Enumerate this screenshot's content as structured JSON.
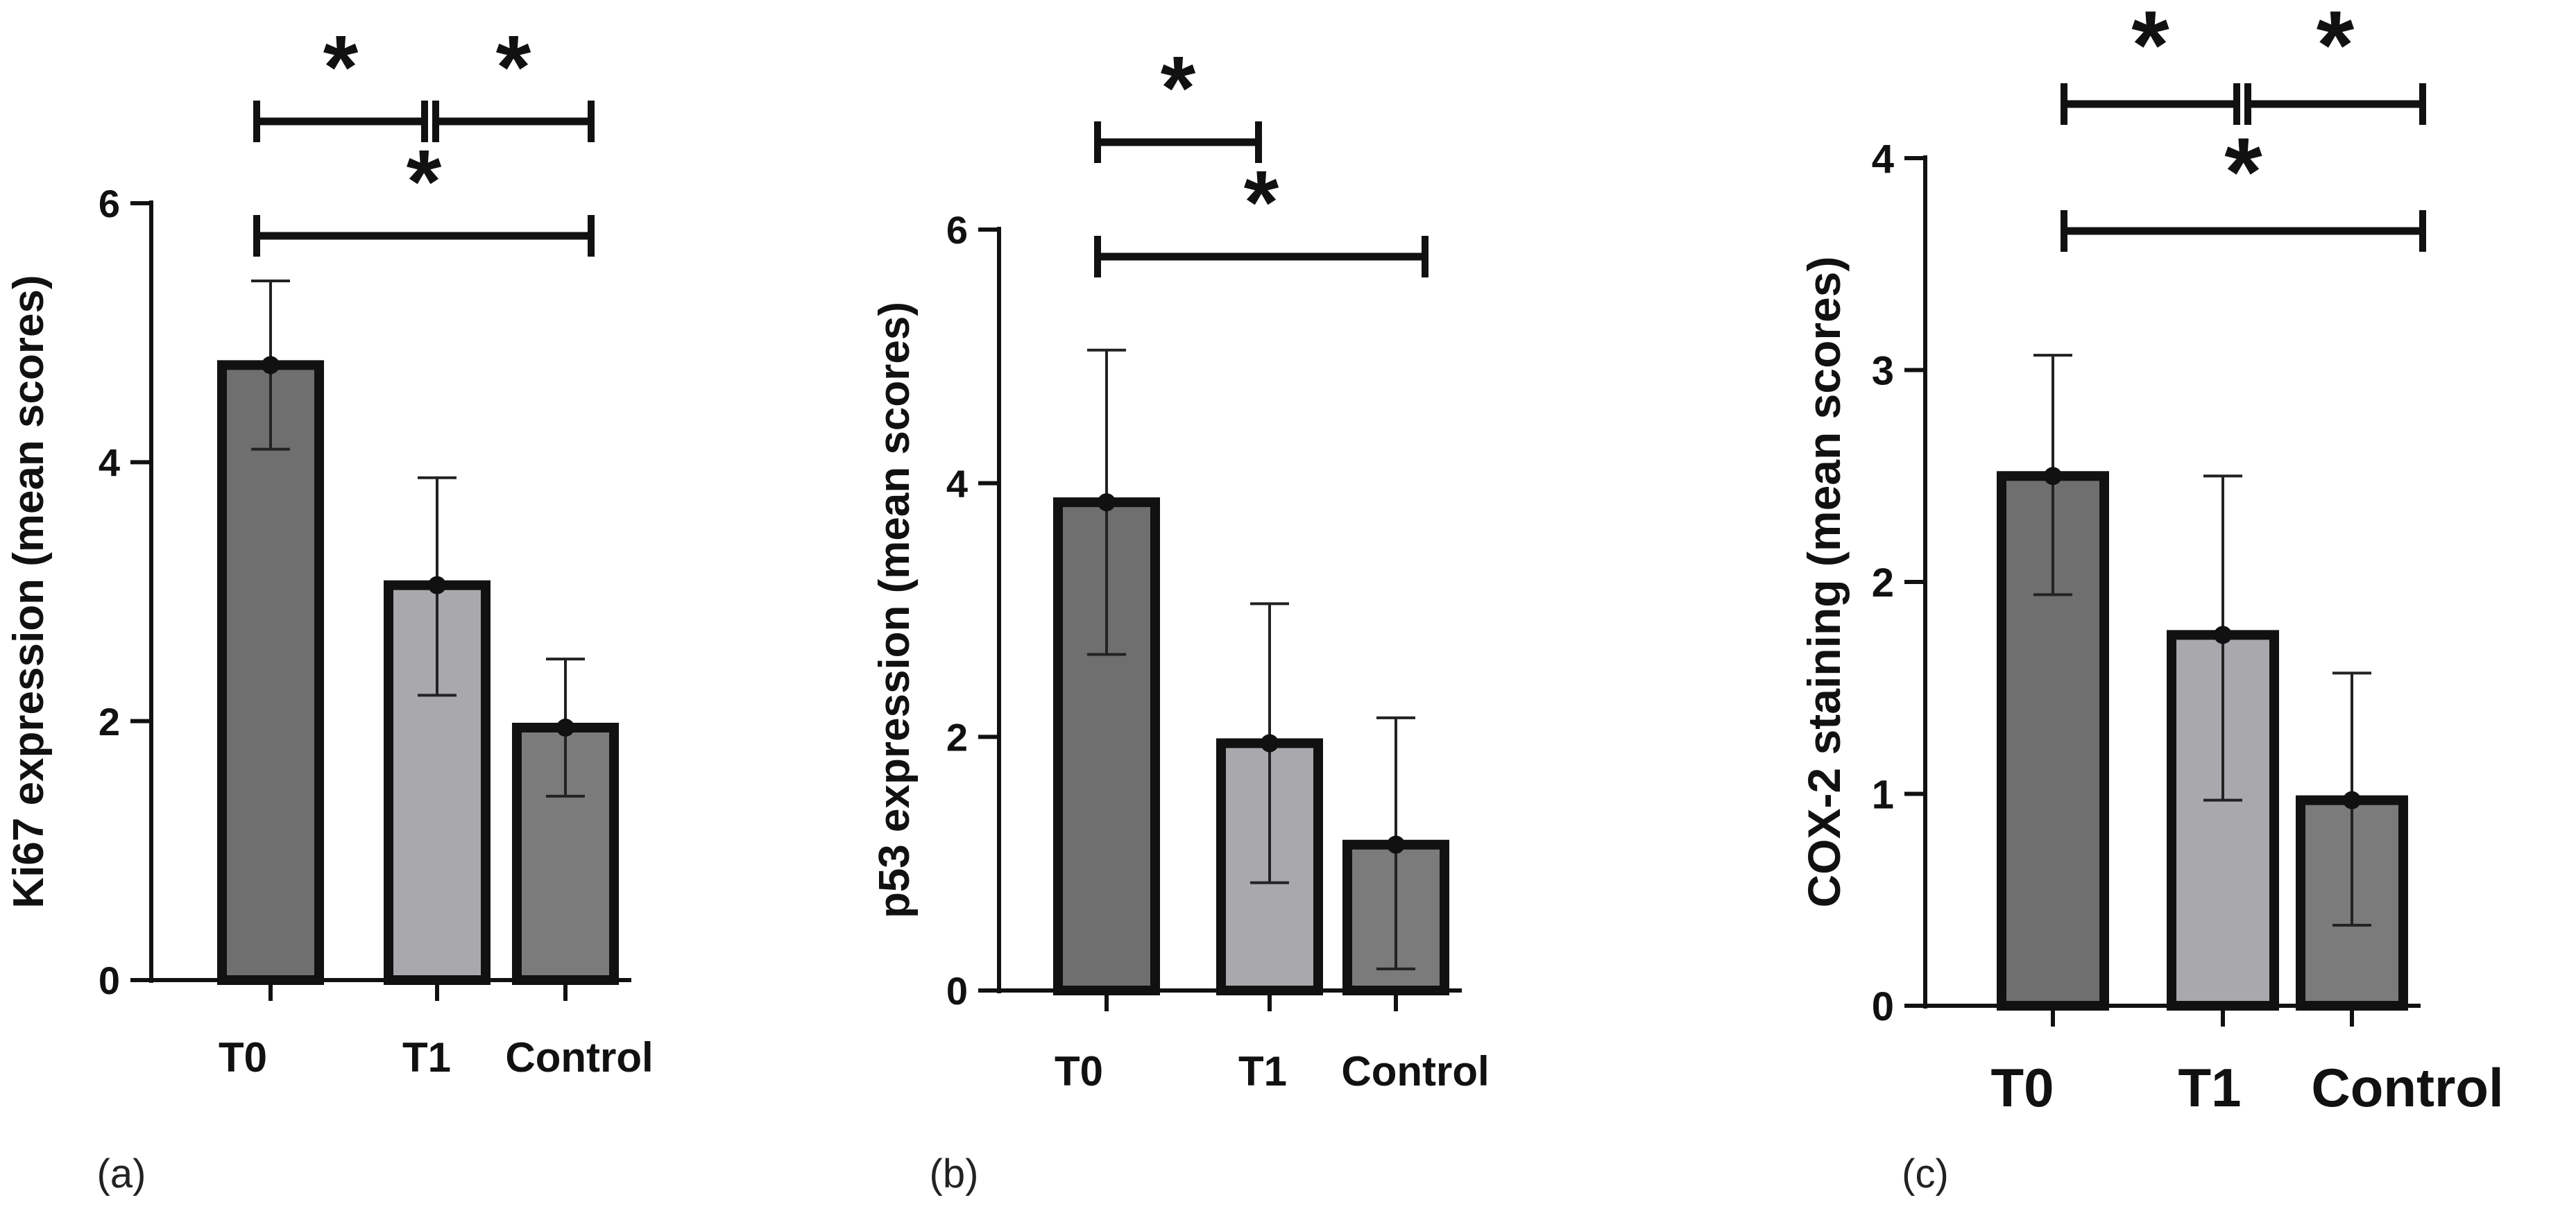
{
  "chart_data": [
    {
      "type": "bar",
      "panel_label": "(a)",
      "ylabel": "Ki67 expression (mean scores)",
      "categories": [
        "T0",
        "T1",
        "Control"
      ],
      "values": [
        4.75,
        3.05,
        1.95
      ],
      "error_lower": [
        4.1,
        2.2,
        1.42
      ],
      "error_upper": [
        5.4,
        3.88,
        2.48
      ],
      "ylim": [
        0,
        6
      ],
      "yticks": [
        "0",
        "2",
        "4",
        "6"
      ],
      "colors": [
        "#6f6f6f",
        "#a9a9ad",
        "#7b7b7b"
      ],
      "significance": [
        {
          "from": 0,
          "to": 1,
          "label": "*"
        },
        {
          "from": 1,
          "to": 2,
          "label": "*"
        },
        {
          "from": 0,
          "to": 2,
          "label": "*"
        }
      ]
    },
    {
      "type": "bar",
      "panel_label": "(b)",
      "ylabel": "p53 expression (mean scores)",
      "categories": [
        "T0",
        "T1",
        "Control"
      ],
      "values": [
        3.85,
        1.95,
        1.15
      ],
      "error_lower": [
        2.65,
        0.85,
        0.17
      ],
      "error_upper": [
        5.05,
        3.05,
        2.15
      ],
      "ylim": [
        0,
        6
      ],
      "yticks": [
        "0",
        "2",
        "4",
        "6"
      ],
      "colors": [
        "#6f6f6f",
        "#a9a9ad",
        "#7b7b7b"
      ],
      "significance": [
        {
          "from": 0,
          "to": 1,
          "label": "*"
        },
        {
          "from": 0,
          "to": 2,
          "label": "*"
        }
      ]
    },
    {
      "type": "bar",
      "panel_label": "(c)",
      "ylabel": "COX-2 staining (mean scores)",
      "categories": [
        "T0",
        "T1",
        "Control"
      ],
      "values": [
        2.5,
        1.75,
        0.97
      ],
      "error_lower": [
        1.94,
        0.97,
        0.38
      ],
      "error_upper": [
        3.07,
        2.5,
        1.57
      ],
      "ylim": [
        0,
        4
      ],
      "yticks": [
        "0",
        "1",
        "2",
        "3",
        "4"
      ],
      "colors": [
        "#6f6f6f",
        "#a9a9ad",
        "#7b7b7b"
      ],
      "significance": [
        {
          "from": 0,
          "to": 1,
          "label": "*"
        },
        {
          "from": 1,
          "to": 2,
          "label": "*"
        },
        {
          "from": 0,
          "to": 2,
          "label": "*"
        }
      ]
    }
  ]
}
